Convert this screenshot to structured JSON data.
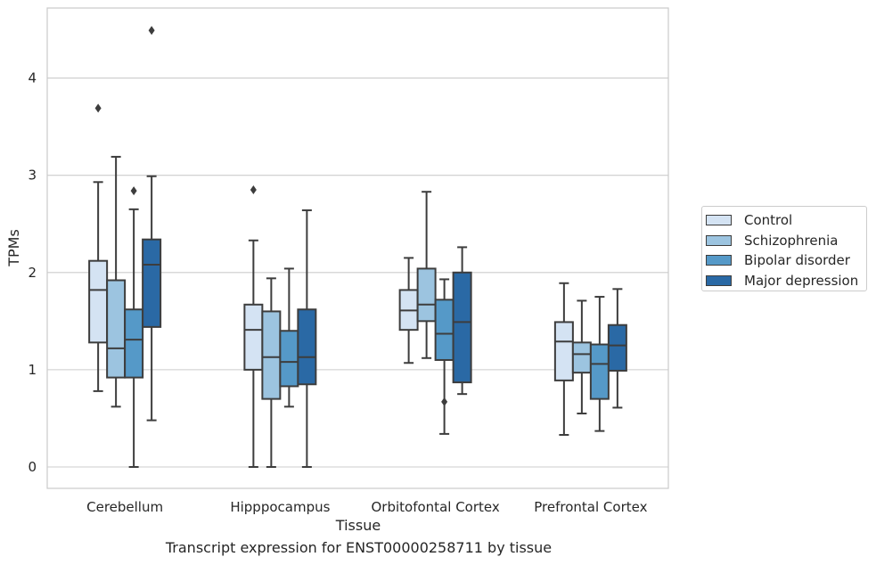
{
  "caption": "Transcript expression for ENST00000258711 by tissue",
  "chart_data": {
    "type": "box",
    "xlabel": "Tissue",
    "ylabel": "TPMs",
    "ylim": [
      -0.22,
      4.72
    ],
    "yticks": [
      0,
      1,
      2,
      3,
      4
    ],
    "grid": "horizontal",
    "legend_position": "right",
    "categories": [
      "Cerebellum",
      "Hipppocampus",
      "Orbitofontal Cortex",
      "Prefrontal Cortex"
    ],
    "series": [
      {
        "name": "Control",
        "color": "#d4e3f3",
        "boxes": [
          {
            "whislo": 0.78,
            "q1": 1.28,
            "med": 1.82,
            "q3": 2.12,
            "whishi": 2.93,
            "fliers": [
              3.69
            ]
          },
          {
            "whislo": 0.0,
            "q1": 1.0,
            "med": 1.41,
            "q3": 1.67,
            "whishi": 2.33,
            "fliers": [
              2.85
            ]
          },
          {
            "whislo": 1.07,
            "q1": 1.41,
            "med": 1.61,
            "q3": 1.82,
            "whishi": 2.15,
            "fliers": []
          },
          {
            "whislo": 0.33,
            "q1": 0.89,
            "med": 1.29,
            "q3": 1.49,
            "whishi": 1.89,
            "fliers": []
          }
        ]
      },
      {
        "name": "Schizophrenia",
        "color": "#9cc4e0",
        "boxes": [
          {
            "whislo": 0.62,
            "q1": 0.92,
            "med": 1.22,
            "q3": 1.92,
            "whishi": 3.19,
            "fliers": []
          },
          {
            "whislo": 0.0,
            "q1": 0.7,
            "med": 1.13,
            "q3": 1.6,
            "whishi": 1.94,
            "fliers": []
          },
          {
            "whislo": 1.12,
            "q1": 1.5,
            "med": 1.67,
            "q3": 2.04,
            "whishi": 2.83,
            "fliers": []
          },
          {
            "whislo": 0.55,
            "q1": 0.97,
            "med": 1.16,
            "q3": 1.28,
            "whishi": 1.71,
            "fliers": []
          }
        ]
      },
      {
        "name": "Bipolar disorder",
        "color": "#5599c8",
        "boxes": [
          {
            "whislo": 0.0,
            "q1": 0.92,
            "med": 1.31,
            "q3": 1.62,
            "whishi": 2.65,
            "fliers": [
              2.84
            ]
          },
          {
            "whislo": 0.62,
            "q1": 0.83,
            "med": 1.08,
            "q3": 1.4,
            "whishi": 2.04,
            "fliers": []
          },
          {
            "whislo": 0.34,
            "q1": 1.1,
            "med": 1.37,
            "q3": 1.72,
            "whishi": 1.93,
            "fliers": [
              0.67
            ]
          },
          {
            "whislo": 0.37,
            "q1": 0.7,
            "med": 1.06,
            "q3": 1.26,
            "whishi": 1.75,
            "fliers": []
          }
        ]
      },
      {
        "name": "Major depression",
        "color": "#2a69a5",
        "boxes": [
          {
            "whislo": 0.48,
            "q1": 1.44,
            "med": 2.08,
            "q3": 2.34,
            "whishi": 2.99,
            "fliers": [
              4.49
            ]
          },
          {
            "whislo": 0.0,
            "q1": 0.85,
            "med": 1.13,
            "q3": 1.62,
            "whishi": 2.64,
            "fliers": []
          },
          {
            "whislo": 0.75,
            "q1": 0.87,
            "med": 1.49,
            "q3": 2.0,
            "whishi": 2.26,
            "fliers": []
          },
          {
            "whislo": 0.61,
            "q1": 0.99,
            "med": 1.25,
            "q3": 1.46,
            "whishi": 1.83,
            "fliers": []
          }
        ]
      }
    ]
  }
}
